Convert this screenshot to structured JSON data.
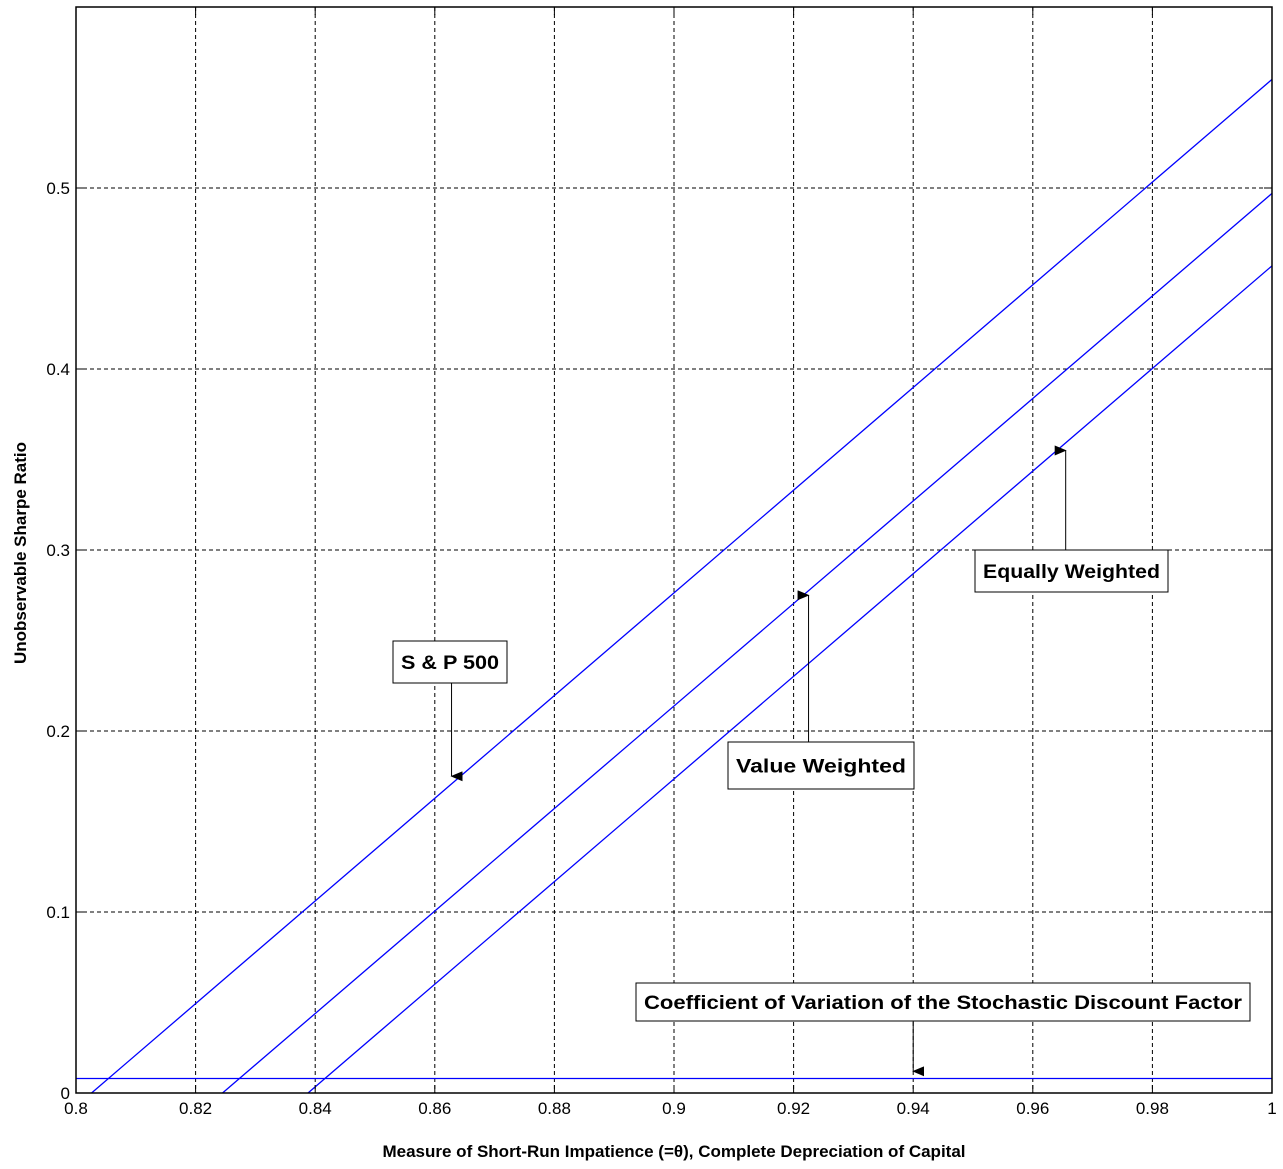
{
  "chart_data": {
    "type": "line",
    "xlabel": "Measure of Short-Run Impatience (=θ), Complete Depreciation of Capital",
    "ylabel": "Unobservable Sharpe Ratio",
    "xlim": [
      0.8,
      1.0
    ],
    "ylim": [
      0,
      0.6
    ],
    "xticks": [
      0.8,
      0.82,
      0.84,
      0.86,
      0.88,
      0.9,
      0.92,
      0.94,
      0.96,
      0.98,
      1.0
    ],
    "xtick_labels": [
      "0.8",
      "0.82",
      "0.84",
      "0.86",
      "0.88",
      "0.9",
      "0.92",
      "0.94",
      "0.96",
      "0.98",
      "1"
    ],
    "yticks": [
      0,
      0.1,
      0.2,
      0.3,
      0.4,
      0.5
    ],
    "ytick_labels": [
      "0",
      "0.1",
      "0.2",
      "0.3",
      "0.4",
      "0.5"
    ],
    "grid": true,
    "line_color": "#0000ff",
    "series": [
      {
        "name": "S & P 500",
        "x": [
          0.8026,
          1.0
        ],
        "y": [
          0.0,
          0.56
        ]
      },
      {
        "name": "Value Weighted",
        "x": [
          0.8245,
          1.0
        ],
        "y": [
          0.0,
          0.497
        ]
      },
      {
        "name": "Equally Weighted",
        "x": [
          0.8388,
          1.0
        ],
        "y": [
          0.0,
          0.457
        ]
      },
      {
        "name": "Coefficient of Variation of the Stochastic Discount Factor",
        "x": [
          0.8,
          1.0
        ],
        "y": [
          0.008,
          0.008
        ]
      }
    ],
    "annotations": [
      {
        "text": "S & P 500",
        "arrow_to": [
          0.8628,
          0.175
        ]
      },
      {
        "text": "Value Weighted",
        "arrow_to": [
          0.9225,
          0.275
        ]
      },
      {
        "text": "Equally Weighted",
        "arrow_to": [
          0.9655,
          0.355
        ]
      },
      {
        "text": "Coefficient of Variation of the Stochastic Discount Factor",
        "arrow_to": [
          0.94,
          0.012
        ]
      }
    ]
  }
}
